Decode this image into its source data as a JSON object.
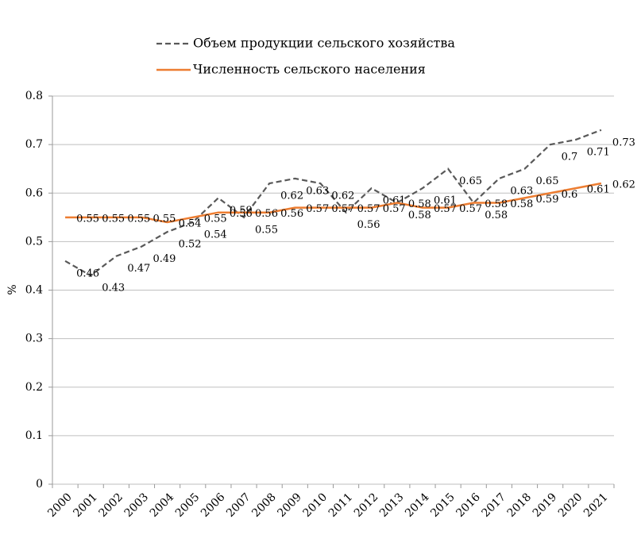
{
  "chart_data": {
    "type": "line",
    "ylabel": "%",
    "categories": [
      "2000",
      "2001",
      "2002",
      "2003",
      "2004",
      "2005",
      "2006",
      "2007",
      "2008",
      "2009",
      "2010",
      "2011",
      "2012",
      "2013",
      "2014",
      "2015",
      "2016",
      "2017",
      "2018",
      "2019",
      "2020",
      "2021"
    ],
    "series": [
      {
        "name": "Объем продукции сельского хозяйства",
        "color": "#595959",
        "dash": true,
        "values": [
          0.46,
          0.43,
          0.47,
          0.49,
          0.52,
          0.54,
          0.59,
          0.55,
          0.62,
          0.63,
          0.62,
          0.56,
          0.61,
          0.58,
          0.61,
          0.65,
          0.58,
          0.63,
          0.65,
          0.7,
          0.71,
          0.73
        ]
      },
      {
        "name": "Численность сельского населения",
        "color": "#ed7d31",
        "dash": false,
        "values": [
          0.55,
          0.55,
          0.55,
          0.55,
          0.54,
          0.55,
          0.56,
          0.56,
          0.56,
          0.57,
          0.57,
          0.57,
          0.57,
          0.58,
          0.57,
          0.57,
          0.58,
          0.58,
          0.59,
          0.6,
          0.61,
          0.62
        ]
      }
    ],
    "ylim": [
      0,
      0.8
    ],
    "yticks": [
      0,
      0.1,
      0.2,
      0.3,
      0.4,
      0.5,
      0.6,
      0.7,
      0.8
    ],
    "grid": true,
    "legend": "top"
  }
}
